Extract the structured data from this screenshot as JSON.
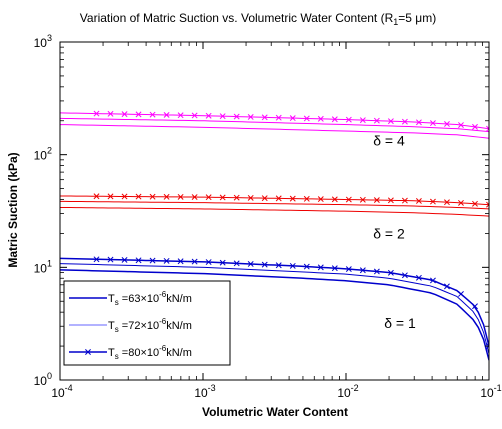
{
  "chart_data": {
    "type": "line",
    "title": {
      "prefix": "Variation of Matric Suction vs. Volumetric Water Content (R",
      "subscript": "1",
      "suffix": "=5 μm)"
    },
    "xlabel": "Volumetric Water Content",
    "ylabel": "Matric Suction (kPa)",
    "x_scale": "log",
    "y_scale": "log",
    "xlim": [
      0.0001,
      0.1
    ],
    "ylim": [
      1,
      1000
    ],
    "x_ticks": [
      {
        "value": 0.0001,
        "base": "10",
        "exp": "-4"
      },
      {
        "value": 0.001,
        "base": "10",
        "exp": "-3"
      },
      {
        "value": 0.01,
        "base": "10",
        "exp": "-2"
      },
      {
        "value": 0.1,
        "base": "10",
        "exp": "-1"
      }
    ],
    "y_ticks": [
      {
        "value": 1,
        "base": "10",
        "exp": "0"
      },
      {
        "value": 10,
        "base": "10",
        "exp": "1"
      },
      {
        "value": 100,
        "base": "10",
        "exp": "2"
      },
      {
        "value": 1000,
        "base": "10",
        "exp": "3"
      }
    ],
    "grid": false,
    "legend": {
      "placement": "bottom-left",
      "entries": [
        {
          "prefix": "T",
          "sub": "s",
          "mid": " =63×10",
          "sup": "-6",
          "suffix": "kN/m",
          "color": "#0000cc",
          "linewidth": 1.5,
          "marker": "none"
        },
        {
          "prefix": "T",
          "sub": "s",
          "mid": " =72×10",
          "sup": "-6",
          "suffix": "kN/m",
          "color": "#6666ff",
          "linewidth": 1.0,
          "marker": "none"
        },
        {
          "prefix": "T",
          "sub": "s",
          "mid": " =80×10",
          "sup": "-6",
          "suffix": "kN/m",
          "color": "#0000cc",
          "linewidth": 1.5,
          "marker": "x"
        }
      ]
    },
    "annotations": [
      {
        "text": "δ = 4",
        "x": 0.0155,
        "y": 120
      },
      {
        "text": "δ = 2",
        "x": 0.0155,
        "y": 18
      },
      {
        "text": "δ = 1",
        "x": 0.0185,
        "y": 2.9
      }
    ],
    "groups": [
      {
        "delta": "δ = 4",
        "color": "#ff00ff",
        "series": [
          {
            "ts": "63",
            "x": [
              0.0001,
              0.001,
              0.01,
              0.03,
              0.06,
              0.1
            ],
            "y": [
              185,
              175,
              162,
              156,
              150,
              140
            ],
            "linewidth": 1.0,
            "marker": "none"
          },
          {
            "ts": "72",
            "x": [
              0.0001,
              0.001,
              0.01,
              0.03,
              0.06,
              0.1
            ],
            "y": [
              210,
              200,
              185,
              177,
              170,
              160
            ],
            "linewidth": 1.0,
            "marker": "none"
          },
          {
            "ts": "80",
            "x": [
              0.0001,
              0.001,
              0.01,
              0.03,
              0.06,
              0.1
            ],
            "y": [
              235,
              222,
              205,
              195,
              185,
              170
            ],
            "linewidth": 1.0,
            "marker": "x"
          }
        ]
      },
      {
        "delta": "δ = 2",
        "color": "#ee0000",
        "series": [
          {
            "ts": "63",
            "x": [
              0.0001,
              0.001,
              0.01,
              0.03,
              0.06,
              0.1
            ],
            "y": [
              34,
              33,
              31.5,
              30.5,
              29.5,
              28.5
            ],
            "linewidth": 1.0,
            "marker": "none"
          },
          {
            "ts": "72",
            "x": [
              0.0001,
              0.001,
              0.01,
              0.03,
              0.06,
              0.1
            ],
            "y": [
              38.5,
              37.5,
              36,
              35,
              34,
              33
            ],
            "linewidth": 1.0,
            "marker": "none"
          },
          {
            "ts": "80",
            "x": [
              0.0001,
              0.001,
              0.01,
              0.03,
              0.06,
              0.1
            ],
            "y": [
              43,
              42,
              40,
              39,
              37.5,
              36
            ],
            "linewidth": 1.0,
            "marker": "x"
          }
        ]
      },
      {
        "delta": "δ = 1",
        "color": "#0000cc",
        "series": [
          {
            "ts": "63",
            "x": [
              0.0001,
              0.001,
              0.005,
              0.01,
              0.02,
              0.04,
              0.06,
              0.08,
              0.09,
              0.1
            ],
            "y": [
              9.5,
              8.8,
              8.0,
              7.6,
              7.0,
              5.9,
              4.7,
              3.3,
              2.5,
              1.5
            ],
            "linewidth": 1.5,
            "marker": "none"
          },
          {
            "ts": "72",
            "x": [
              0.0001,
              0.001,
              0.005,
              0.01,
              0.02,
              0.04,
              0.06,
              0.08,
              0.09,
              0.1
            ],
            "y": [
              10.8,
              10.0,
              9.1,
              8.7,
              8.0,
              6.8,
              5.5,
              3.9,
              2.9,
              1.7
            ],
            "linewidth": 1.0,
            "marker": "none"
          },
          {
            "ts": "80",
            "x": [
              0.0001,
              0.001,
              0.005,
              0.01,
              0.02,
              0.04,
              0.06,
              0.08,
              0.09,
              0.1
            ],
            "y": [
              12,
              11.2,
              10.2,
              9.7,
              9.0,
              7.7,
              6.2,
              4.5,
              3.4,
              2.0
            ],
            "linewidth": 1.5,
            "marker": "x"
          }
        ]
      }
    ]
  }
}
